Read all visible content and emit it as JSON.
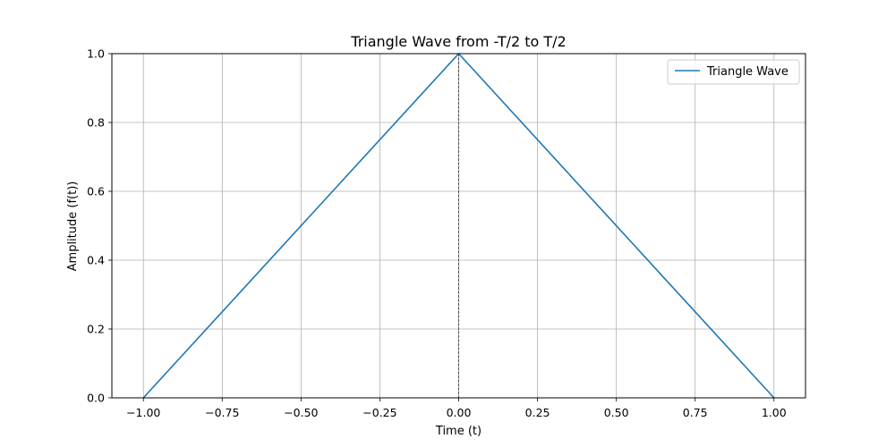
{
  "chart_data": {
    "type": "line",
    "title": "Triangle Wave from -T/2 to T/2",
    "xlabel": "Time (t)",
    "ylabel": "Amplitude (f(t))",
    "xlim": [
      -1.1,
      1.1
    ],
    "ylim": [
      0,
      1
    ],
    "xticks": [
      -1.0,
      -0.75,
      -0.5,
      -0.25,
      0.0,
      0.25,
      0.5,
      0.75,
      1.0
    ],
    "xtick_labels": [
      "−1.00",
      "−0.75",
      "−0.50",
      "−0.25",
      "0.00",
      "0.25",
      "0.50",
      "0.75",
      "1.00"
    ],
    "yticks": [
      0.0,
      0.2,
      0.4,
      0.6,
      0.8,
      1.0
    ],
    "ytick_labels": [
      "0.0",
      "0.2",
      "0.4",
      "0.6",
      "0.8",
      "1.0"
    ],
    "grid": true,
    "legend_position": "top-right",
    "vertical_reference_line": {
      "x": 0,
      "style": "dashed",
      "color": "#000000"
    },
    "series": [
      {
        "name": "Triangle Wave",
        "color": "#1f77b4",
        "x": [
          -1.0,
          0.0,
          1.0
        ],
        "y": [
          0.0,
          1.0,
          0.0
        ]
      }
    ]
  }
}
